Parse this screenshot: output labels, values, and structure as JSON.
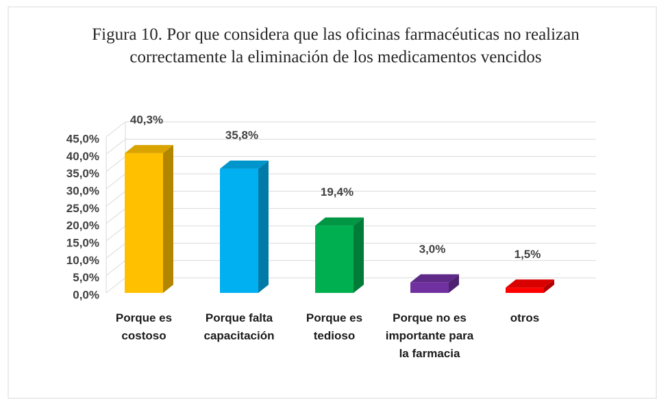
{
  "chart_data": {
    "type": "bar3d",
    "title": "Figura 10. Por que considera que las oficinas farmacéuticas no realizan correctamente la eliminación de los medicamentos vencidos",
    "categories": [
      "Porque es costoso",
      "Porque falta capacitación",
      "Porque es tedioso",
      "Porque no es importante para la farmacia",
      "otros"
    ],
    "values": [
      40.3,
      35.8,
      19.4,
      3.0,
      1.5
    ],
    "value_labels": [
      "40,3%",
      "35,8%",
      "19,4%",
      "3,0%",
      "1,5%"
    ],
    "colors": [
      "#ffc000",
      "#00b0f0",
      "#00b050",
      "#7030a0",
      "#ff0000"
    ],
    "ylim": [
      0,
      45
    ],
    "yticks": [
      {
        "value": 0,
        "label": "0,0%"
      },
      {
        "value": 5,
        "label": "5,0%"
      },
      {
        "value": 10,
        "label": "10,0%"
      },
      {
        "value": 15,
        "label": "15,0%"
      },
      {
        "value": 20,
        "label": "20,0%"
      },
      {
        "value": 25,
        "label": "25,0%"
      },
      {
        "value": 30,
        "label": "30,0%"
      },
      {
        "value": 35,
        "label": "35,0%"
      },
      {
        "value": 40,
        "label": "40,0%"
      },
      {
        "value": 45,
        "label": "45,0%"
      }
    ],
    "grid": true
  }
}
